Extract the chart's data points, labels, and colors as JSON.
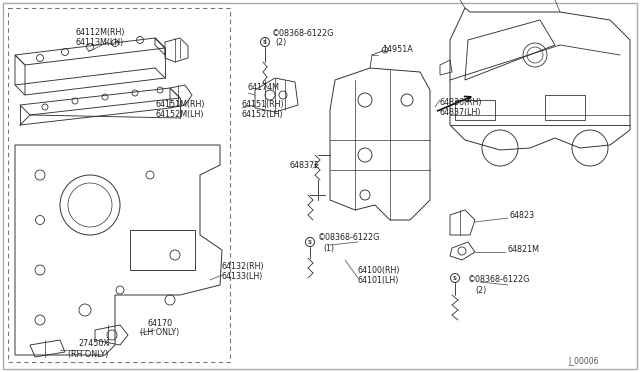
{
  "bg_color": "#ffffff",
  "line_color": "#333333",
  "border_color": "#cccccc",
  "text_color": "#222222",
  "lw": 0.65,
  "fontsize": 5.8,
  "parts": {
    "rail1_label1": "64112M(RH)",
    "rail1_label2": "64113M(LH)",
    "bolt_top": "©08368-6122G",
    "bolt_top2": "(2)",
    "bracket64174": "64174M",
    "label64151rh": "64151(RH)",
    "label64152lh": "64152(LH)",
    "label64151Mrh": "64151M(RH)",
    "label64152Mlh": "64152M(LH)",
    "label64132": "64132(RH)",
    "label64133": "64133(LH)",
    "label64170": "64170",
    "label64170b": "(LH ONLY)",
    "label27450": "27450X",
    "label27450b": "(RH ONLY)",
    "label14951": "14951A",
    "label64836": "64836(RH)",
    "label64837": "64837(LH)",
    "label64837E": "64837E",
    "bolt_mid": "©08368-6122G",
    "bolt_mid2": "(1)",
    "label64100": "64100(RH)",
    "label64101": "64101(LH)",
    "label64823": "64823",
    "label64821": "64821M",
    "bolt_right": "©08368-6122G",
    "bolt_right2": "(2)",
    "ref": "J_00006"
  }
}
